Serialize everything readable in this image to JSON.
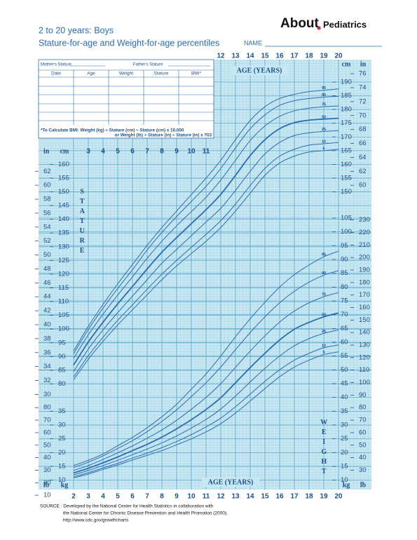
{
  "header": {
    "brand": "About",
    "brand_section": "Pediatrics",
    "title": "2 to 20 years: Boys",
    "subtitle": "Stature-for-age and Weight-for-age percentiles",
    "name_label": "NAME"
  },
  "form": {
    "mother": "Mother's Stature",
    "father": "Father's Stature",
    "columns": [
      "Date",
      "Age",
      "Weight",
      "Stature",
      "BMI*"
    ],
    "bmi_note": [
      "*To Calculate BMI: Weight (kg) ÷ Stature (cm) ÷ Stature (cm) x 10,000",
      "or Weight (lb) ÷ Stature (in) ÷ Stature (in) x 703"
    ]
  },
  "chart_data": {
    "type": "line",
    "x_label": "AGE (YEARS)",
    "x": [
      2,
      3,
      4,
      5,
      6,
      7,
      8,
      9,
      10,
      11,
      12,
      13,
      14,
      15,
      16,
      17,
      18,
      19,
      20
    ],
    "xlim": [
      2,
      20
    ],
    "xticks": [
      2,
      3,
      4,
      5,
      6,
      7,
      8,
      9,
      10,
      11,
      12,
      13,
      14,
      15,
      16,
      17,
      18,
      19,
      20
    ],
    "stature": {
      "label": "STATURE",
      "unit_cm": "cm",
      "unit_in": "in",
      "ylim": [
        41.8,
        197.4
      ],
      "y_in_lim": [
        16.46,
        77.72
      ],
      "left_cm_ticks": [
        80,
        85,
        90,
        95,
        100,
        105,
        110,
        115,
        120,
        125,
        130,
        135,
        140,
        145,
        150,
        155,
        160
      ],
      "right_cm_ticks": [
        150,
        155,
        160,
        165,
        170,
        175,
        180,
        185,
        190
      ],
      "left_in_ticks": [
        30,
        32,
        34,
        36,
        38,
        40,
        42,
        44,
        46,
        48,
        50,
        52,
        54,
        56,
        58,
        60,
        62
      ],
      "right_in_ticks": [
        60,
        62,
        64,
        66,
        68,
        70,
        72,
        74,
        76
      ],
      "series": [
        {
          "name": "5",
          "values": [
            81.5,
            89,
            95.5,
            101.5,
            107,
            112.5,
            118,
            123,
            127.5,
            132,
            137,
            143,
            149.5,
            156,
            160.5,
            163,
            164.5,
            165,
            165.5
          ]
        },
        {
          "name": "10",
          "values": [
            82.5,
            90.3,
            97,
            103.2,
            108.8,
            114.5,
            120,
            125,
            129.8,
            134.5,
            139.5,
            145.5,
            152.3,
            158.5,
            163,
            165.5,
            167,
            167.5,
            168
          ]
        },
        {
          "name": "25",
          "values": [
            84.5,
            92.7,
            99.7,
            106,
            112,
            118,
            124,
            129,
            134,
            139,
            144,
            150.5,
            157.5,
            163.8,
            168,
            170.5,
            171.5,
            172,
            172.3
          ]
        },
        {
          "name": "50",
          "values": [
            86.9,
            95.3,
            102.5,
            109.2,
            115.5,
            121.9,
            128,
            133.3,
            138.4,
            143.5,
            149.1,
            156,
            163.2,
            169,
            173,
            175.2,
            176.1,
            176.5,
            176.8
          ]
        },
        {
          "name": "75",
          "values": [
            89.3,
            97.9,
            105.4,
            112.4,
            119,
            125.8,
            132,
            137.6,
            142.8,
            148,
            154.3,
            161.5,
            168.7,
            174,
            177.5,
            179.5,
            180.5,
            181,
            181.3
          ]
        },
        {
          "name": "90",
          "values": [
            91,
            99.8,
            107.6,
            114.8,
            121.6,
            128.8,
            135.2,
            141,
            146.5,
            152,
            158.5,
            166,
            173,
            178,
            181.5,
            183.2,
            184,
            184.5,
            184.8
          ]
        },
        {
          "name": "95",
          "values": [
            92,
            101,
            109,
            116.5,
            123.5,
            130.5,
            137,
            143,
            149,
            155,
            161.5,
            169,
            176,
            181,
            184,
            185.5,
            186.5,
            187,
            187.5
          ]
        }
      ]
    },
    "weight": {
      "label": "WEIGHT",
      "unit_kg": "kg",
      "unit_lb": "lb",
      "ylim": [
        6.86,
        161.7
      ],
      "y_lb_lim": [
        15.1,
        356.5
      ],
      "left_kg_ticks": [
        10,
        15,
        20,
        25,
        30,
        35
      ],
      "right_kg_ticks": [
        10,
        15,
        20,
        25,
        30,
        35,
        40,
        45,
        50,
        55,
        60,
        65,
        70,
        75,
        80,
        85,
        90,
        95,
        100,
        105
      ],
      "left_lb_ticks": [
        10,
        20,
        30,
        40,
        50,
        60,
        70,
        80
      ],
      "right_lb_ticks": [
        30,
        40,
        50,
        60,
        70,
        80,
        90,
        100,
        110,
        120,
        130,
        140,
        150,
        160,
        170,
        180,
        190,
        200,
        210,
        220,
        230
      ],
      "series": [
        {
          "name": "5",
          "values": [
            10.8,
            12.2,
            13.9,
            15.5,
            17.3,
            19,
            20.7,
            22.8,
            25,
            27.5,
            30.5,
            34.3,
            38.7,
            43.2,
            47.5,
            51,
            53.5,
            55.5,
            56.5
          ]
        },
        {
          "name": "10",
          "values": [
            11.2,
            12.7,
            14.4,
            16.1,
            18,
            19.8,
            21.8,
            24,
            26.5,
            29.3,
            32.5,
            36.6,
            41.2,
            45.8,
            50,
            53.5,
            56,
            58,
            59
          ]
        },
        {
          "name": "25",
          "values": [
            11.9,
            13.5,
            15.3,
            17.2,
            19.2,
            21.3,
            23.5,
            26,
            28.9,
            32,
            35.8,
            40.5,
            45.6,
            50.5,
            55,
            58.7,
            61.3,
            63.2,
            64.5
          ]
        },
        {
          "name": "50",
          "values": [
            12.6,
            14.3,
            16.3,
            18.4,
            20.7,
            23,
            25.6,
            28.6,
            31.9,
            35.6,
            39.9,
            45.3,
            50.8,
            56,
            60.8,
            64.7,
            67.2,
            69.2,
            70.6
          ]
        },
        {
          "name": "75",
          "values": [
            13.5,
            15.3,
            17.5,
            19.9,
            22.4,
            25.2,
            28.2,
            31.7,
            35.7,
            40,
            45,
            50.9,
            56.8,
            62.3,
            67.3,
            71.3,
            74.3,
            76.5,
            78
          ]
        },
        {
          "name": "90",
          "values": [
            14.6,
            16.5,
            18.8,
            21.5,
            24.3,
            27.6,
            31.3,
            35.5,
            40.3,
            45.3,
            51,
            57.3,
            63.5,
            69.2,
            74.3,
            78.5,
            81.8,
            84.3,
            86
          ]
        },
        {
          "name": "95",
          "values": [
            15.3,
            17.2,
            19.5,
            22.5,
            25.5,
            29,
            33,
            37.5,
            43,
            48.5,
            55,
            62,
            68.5,
            74.5,
            80,
            84.5,
            88,
            91,
            93
          ]
        }
      ]
    }
  },
  "source": [
    "SOURCE : Developed by the National Center for Health Statistics in collaboration with",
    "the National Center for Chronic Disease Prevention and Health Promotion (2000).",
    "http://www.cdc.gov/growthcharts"
  ]
}
